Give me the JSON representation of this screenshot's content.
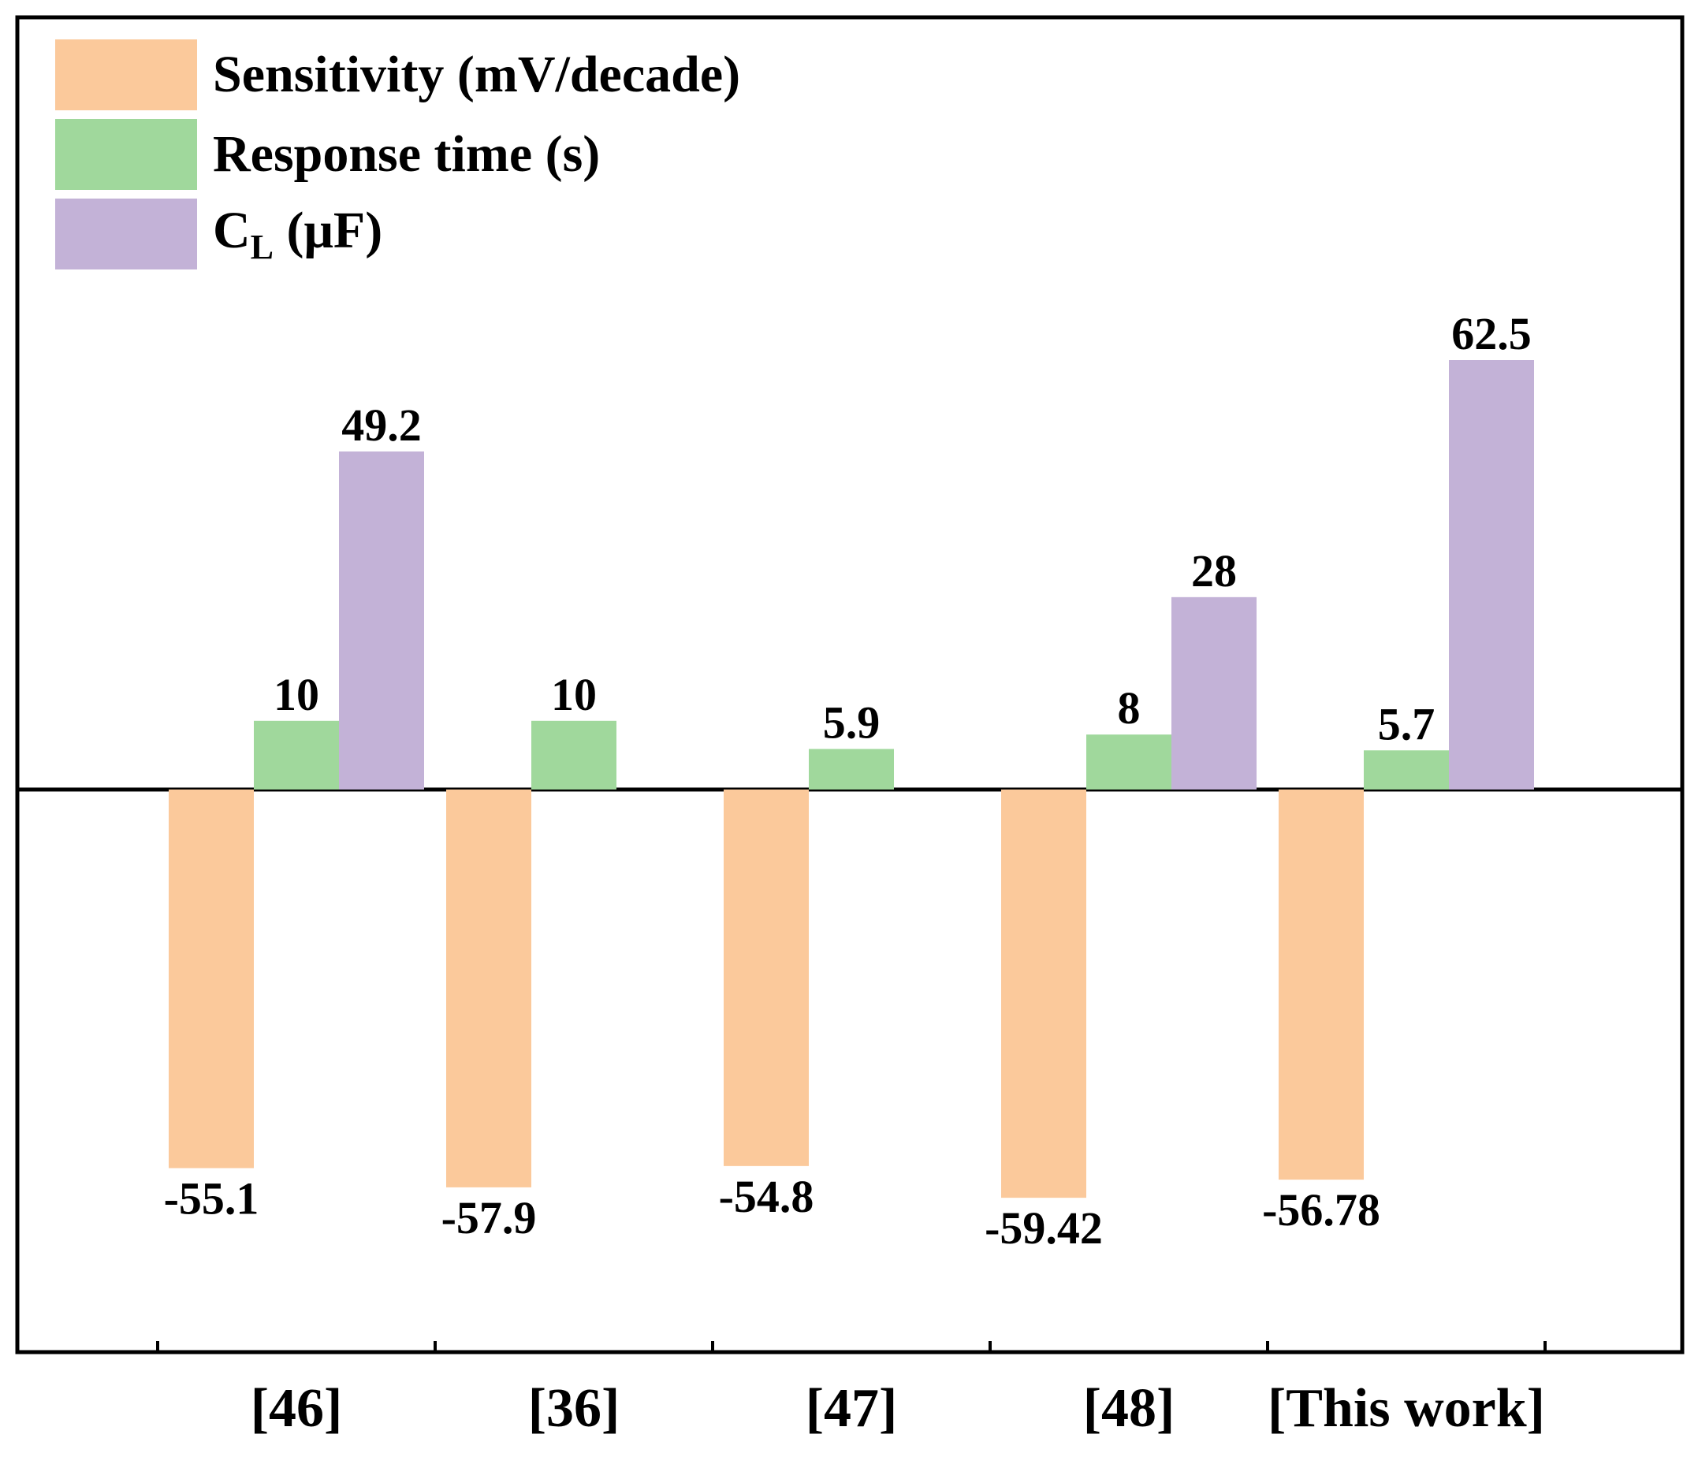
{
  "colors": {
    "sensitivity": "#fbc99b",
    "response_time": "#a0d89c",
    "cl": "#c3b2d7"
  },
  "legend": {
    "sensitivity": "Sensitivity (mV/decade)",
    "response_time": "Response time (s)",
    "cl_main": "C",
    "cl_sub": "L",
    "cl_unit": " (μF)"
  },
  "chart_data": {
    "type": "bar",
    "title": "",
    "xlabel": "",
    "ylabel": "",
    "categories": [
      "[46]",
      "[36]",
      "[47]",
      "[48]",
      "[This work]"
    ],
    "series": [
      {
        "name": "Sensitivity (mV/decade)",
        "values": [
          -55.1,
          -57.9,
          -54.8,
          -59.42,
          -56.78
        ],
        "labels": [
          "-55.1",
          "-57.9",
          "-54.8",
          "-59.42",
          "-56.78"
        ]
      },
      {
        "name": "Response time (s)",
        "values": [
          10,
          10,
          5.9,
          8,
          5.7
        ],
        "labels": [
          "10",
          "10",
          "5.9",
          "8",
          "5.7"
        ]
      },
      {
        "name": "C_L (μF)",
        "values": [
          49.2,
          null,
          null,
          28,
          62.5
        ],
        "labels": [
          "49.2",
          "",
          "",
          "28",
          "62.5"
        ]
      }
    ],
    "ylim": [
      -80,
      110
    ],
    "grid": false,
    "legend_position": "top-left"
  }
}
